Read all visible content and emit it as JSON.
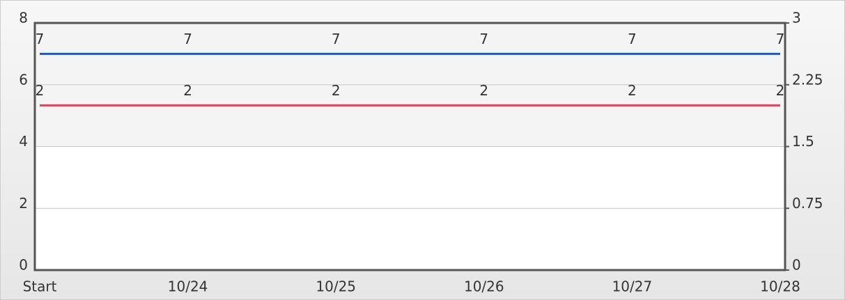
{
  "chart_data": {
    "type": "line",
    "categories": [
      "Start",
      "10/24",
      "10/25",
      "10/26",
      "10/27",
      "10/28"
    ],
    "series": [
      {
        "color": "#2456b8",
        "values": [
          7,
          7,
          7,
          7,
          7,
          7
        ]
      },
      {
        "color": "#d9475a",
        "values": [
          2,
          2,
          2,
          2,
          2,
          2
        ],
        "axis": "y2"
      }
    ],
    "ylim": [
      0,
      8
    ],
    "yticks": [
      0,
      2,
      4,
      6,
      8
    ],
    "y2lim": [
      0,
      3
    ],
    "y2ticks": [
      0,
      0.75,
      1.5,
      2.25,
      3
    ],
    "grid": true
  }
}
